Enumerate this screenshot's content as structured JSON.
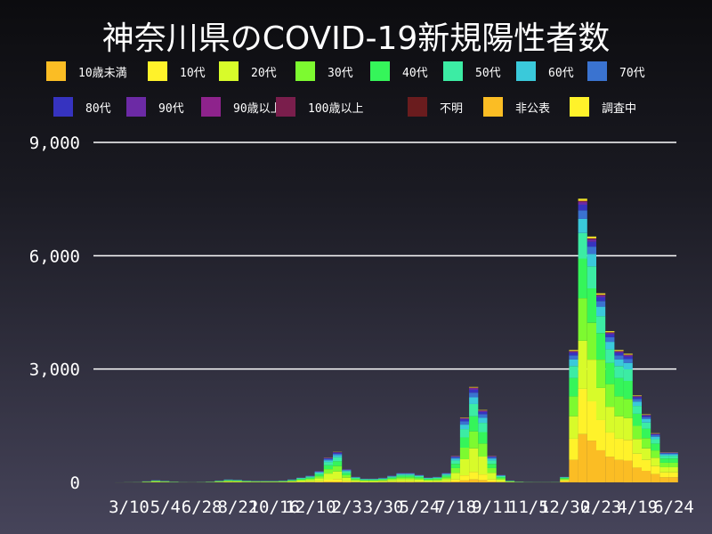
{
  "title": "神奈川県のCOVID-19新規陽性者数",
  "chart_data": {
    "type": "bar",
    "stacked": true,
    "title": "神奈川県のCOVID-19新規陽性者数",
    "xlabel": "",
    "ylabel": "",
    "ylim": [
      0,
      9000
    ],
    "yticks": [
      "0",
      "3,000",
      "6,000",
      "9,000"
    ],
    "ytick_values": [
      0,
      3000,
      6000,
      9000
    ],
    "xtick_labels": [
      "3/10",
      "5/4",
      "6/28",
      "8/22",
      "10/16",
      "12/10",
      "2/3",
      "3/30",
      "5/24",
      "7/18",
      "9/11",
      "11/5",
      "12/30",
      "2/23",
      "4/19",
      "6/24"
    ],
    "grid": true,
    "legend_position": "top",
    "x": [
      "2020-01-20",
      "2020-02-03",
      "2020-02-17",
      "2020-03-02",
      "2020-03-16",
      "2020-03-30",
      "2020-04-13",
      "2020-04-27",
      "2020-05-11",
      "2020-05-25",
      "2020-06-08",
      "2020-06-22",
      "2020-07-06",
      "2020-07-20",
      "2020-08-03",
      "2020-08-17",
      "2020-08-31",
      "2020-09-14",
      "2020-09-28",
      "2020-10-12",
      "2020-10-26",
      "2020-11-09",
      "2020-11-23",
      "2020-12-07",
      "2020-12-21",
      "2021-01-04",
      "2021-01-18",
      "2021-02-01",
      "2021-02-15",
      "2021-03-01",
      "2021-03-15",
      "2021-03-29",
      "2021-04-12",
      "2021-04-26",
      "2021-05-10",
      "2021-05-24",
      "2021-06-07",
      "2021-06-21",
      "2021-07-05",
      "2021-07-19",
      "2021-08-02",
      "2021-08-16",
      "2021-08-30",
      "2021-09-13",
      "2021-09-27",
      "2021-10-11",
      "2021-10-25",
      "2021-11-08",
      "2021-11-22",
      "2021-12-06",
      "2021-12-20",
      "2022-01-03",
      "2022-01-17",
      "2022-01-31",
      "2022-02-14",
      "2022-02-28",
      "2022-03-14",
      "2022-03-28",
      "2022-04-11",
      "2022-04-25",
      "2022-05-09",
      "2022-05-23",
      "2022-06-06",
      "2022-06-20"
    ],
    "total": [
      0,
      0,
      2,
      5,
      8,
      30,
      60,
      40,
      20,
      8,
      5,
      10,
      20,
      50,
      80,
      70,
      50,
      40,
      40,
      40,
      50,
      80,
      130,
      180,
      300,
      650,
      800,
      350,
      150,
      100,
      100,
      120,
      180,
      250,
      250,
      200,
      130,
      150,
      250,
      700,
      1700,
      2500,
      1900,
      700,
      200,
      50,
      20,
      10,
      8,
      8,
      10,
      150,
      3500,
      7500,
      6500,
      5000,
      4000,
      3500,
      3400,
      2300,
      1800,
      1300,
      800,
      800
    ],
    "series": [
      {
        "name": "10歳未満",
        "color": "#fbbd24",
        "share_2020_2021": 0.03,
        "share_2022": 0.17
      },
      {
        "name": "10代",
        "color": "#fff22a",
        "share_2020_2021": 0.08,
        "share_2022": 0.16
      },
      {
        "name": "20代",
        "color": "#d8fb2a",
        "share_2020_2021": 0.25,
        "share_2022": 0.17
      },
      {
        "name": "30代",
        "color": "#7dfa30",
        "share_2020_2021": 0.18,
        "share_2022": 0.15
      },
      {
        "name": "40代",
        "color": "#35f55a",
        "share_2020_2021": 0.16,
        "share_2022": 0.14
      },
      {
        "name": "50代",
        "color": "#3ceca4",
        "share_2020_2021": 0.13,
        "share_2022": 0.09
      },
      {
        "name": "60代",
        "color": "#3ac9da",
        "share_2020_2021": 0.07,
        "share_2022": 0.05
      },
      {
        "name": "70代",
        "color": "#3a73d0",
        "share_2020_2021": 0.05,
        "share_2022": 0.03
      },
      {
        "name": "80代",
        "color": "#3633c0",
        "share_2020_2021": 0.03,
        "share_2022": 0.02
      },
      {
        "name": "90代",
        "color": "#6c2aa5",
        "share_2020_2021": 0.015,
        "share_2022": 0.008
      },
      {
        "name": "90歳以上",
        "color": "#8e238c",
        "share_2020_2021": 0.005,
        "share_2022": 0.003
      },
      {
        "name": "100歳以上",
        "color": "#7a1e4c",
        "share_2020_2021": 0.001,
        "share_2022": 0.001
      },
      {
        "name": "不明",
        "color": "#6a1c1e",
        "share_2020_2021": 0.001,
        "share_2022": 0.001
      },
      {
        "name": "非公表",
        "color": "#fbbd24",
        "share_2020_2021": 0.005,
        "share_2022": 0.003
      },
      {
        "name": "調査中",
        "color": "#fff22a",
        "share_2020_2021": 0.003,
        "share_2022": 0.005
      }
    ]
  }
}
